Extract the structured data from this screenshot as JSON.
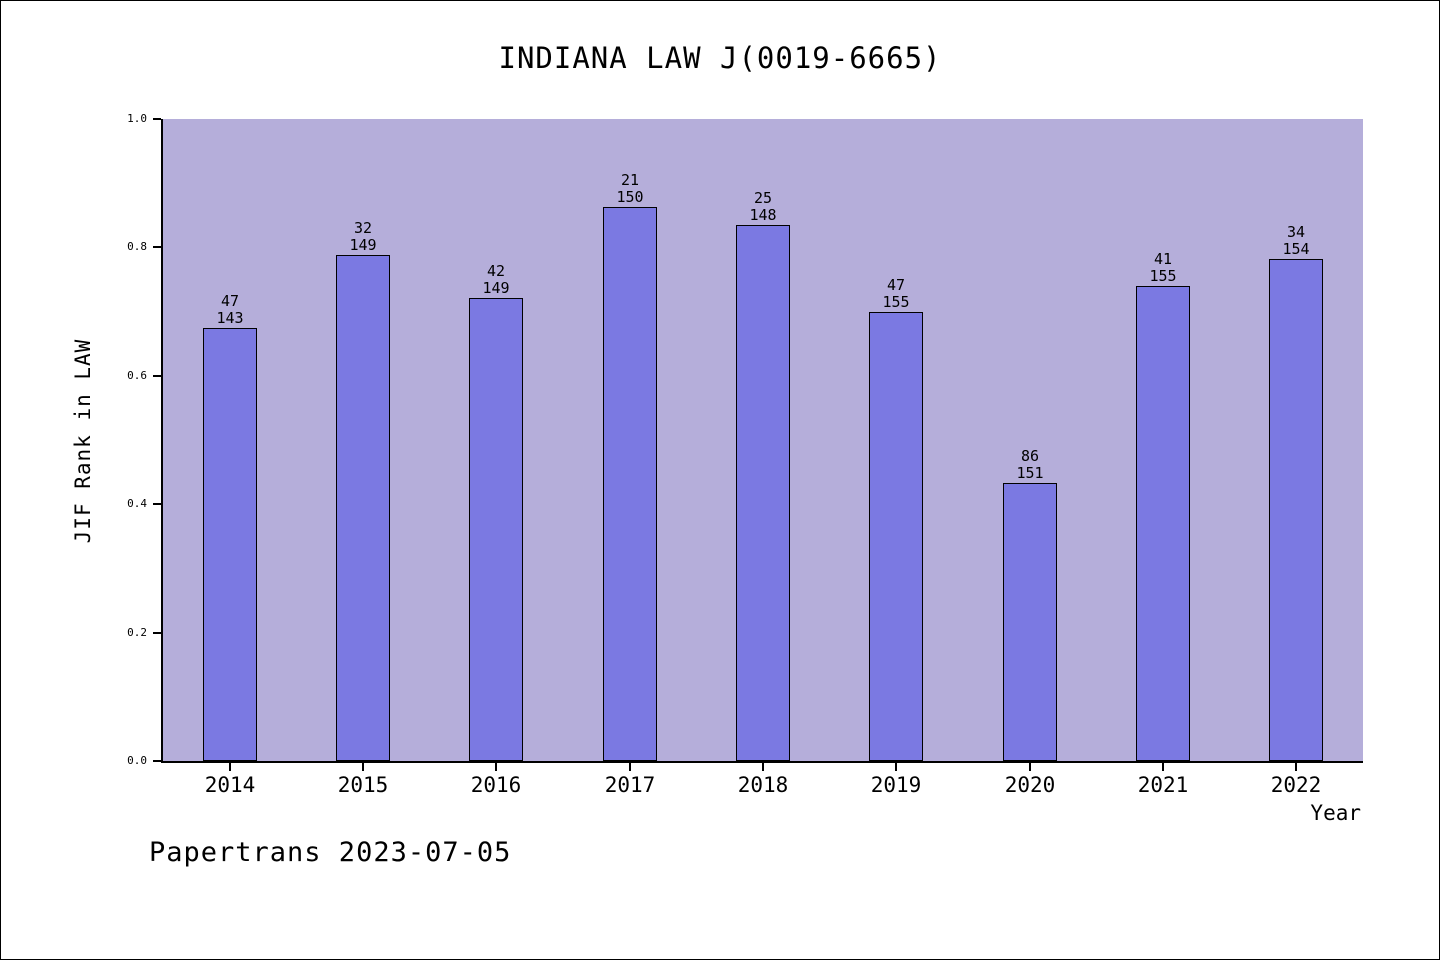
{
  "footer": "Papertrans 2023-07-05",
  "chart_data": {
    "type": "bar",
    "title": "INDIANA LAW J(0019-6665)",
    "xlabel": "Year",
    "ylabel": "JIF Rank in LAW",
    "ylim": [
      0.0,
      1.0
    ],
    "ytick_step": 0.2,
    "grid": false,
    "legend_position": "none",
    "categories": [
      "2014",
      "2015",
      "2016",
      "2017",
      "2018",
      "2019",
      "2020",
      "2021",
      "2022"
    ],
    "series": [
      {
        "name": "JIF Rank in LAW",
        "values": [
          0.671,
          0.785,
          0.718,
          0.86,
          0.831,
          0.697,
          0.43,
          0.736,
          0.779
        ]
      }
    ],
    "bar_annotations": [
      {
        "rank": "47",
        "total": "143"
      },
      {
        "rank": "32",
        "total": "149"
      },
      {
        "rank": "42",
        "total": "149"
      },
      {
        "rank": "21",
        "total": "150"
      },
      {
        "rank": "25",
        "total": "148"
      },
      {
        "rank": "47",
        "total": "155"
      },
      {
        "rank": "86",
        "total": "151"
      },
      {
        "rank": "41",
        "total": "155"
      },
      {
        "rank": "34",
        "total": "154"
      }
    ],
    "colors": {
      "bar_fill": "#7b79e2",
      "bar_border": "#000000",
      "plot_background": "#b5aeda",
      "text": "#000000",
      "frame_background": "#ffffff"
    }
  }
}
